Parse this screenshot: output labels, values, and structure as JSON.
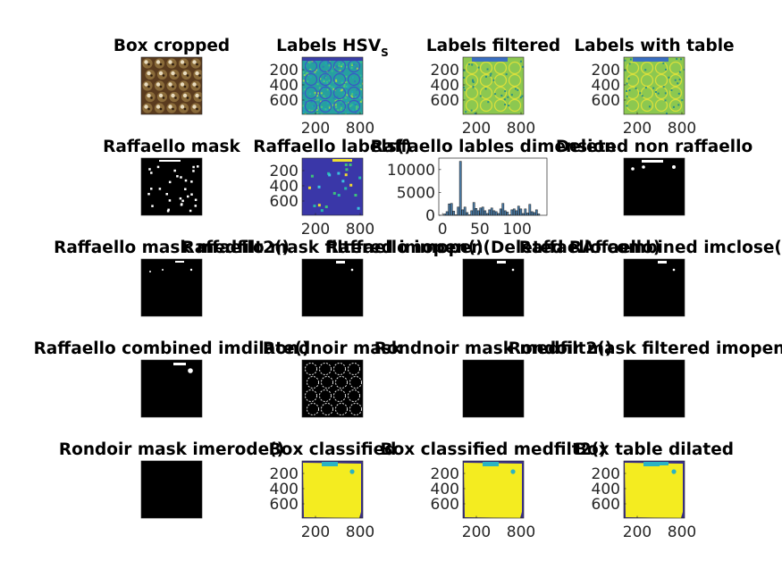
{
  "panels": [
    {
      "id": "box-cropped",
      "title": "Box cropped",
      "kind": "photo",
      "axes": false
    },
    {
      "id": "labels-hsv",
      "title": "Labels HSV",
      "title_subscript": "S",
      "kind": "labels-noise",
      "axes": true,
      "yticks": [
        "200",
        "400",
        "600"
      ],
      "xticks": [
        "200",
        "800"
      ]
    },
    {
      "id": "labels-filtered",
      "title": "Labels filtered",
      "kind": "labels-green",
      "axes": true,
      "yticks": [
        "200",
        "400",
        "600"
      ],
      "xticks": [
        "200",
        "800"
      ]
    },
    {
      "id": "labels-with-table",
      "title": "Labels with table",
      "kind": "labels-green",
      "axes": true,
      "yticks": [
        "200",
        "400",
        "600"
      ],
      "xticks": [
        "200",
        "800"
      ]
    },
    {
      "id": "raffaello-mask",
      "title": "Raffaello mask",
      "kind": "mask-dots",
      "axes": false
    },
    {
      "id": "raffaello-labels",
      "title": "Raffaello labels()",
      "kind": "labels-blue",
      "axes": true,
      "yticks": [
        "200",
        "400",
        "600"
      ],
      "xticks": [
        "200",
        "800"
      ]
    },
    {
      "id": "raffaello-lables-dimension",
      "title": "Raffaello lables dimension",
      "kind": "histogram",
      "axes": true
    },
    {
      "id": "deleted-non-raffaello",
      "title": "Deleted non raffaello",
      "kind": "mask-few",
      "axes": false
    },
    {
      "id": "raffaello-mask-medfilt2",
      "title": "Raffaello mask medfilt2()",
      "kind": "mask-sparse",
      "axes": false
    },
    {
      "id": "raffaello-mask-filtered-imopen",
      "title": "Raffaello mask filtered imopen()",
      "kind": "mask-top",
      "axes": false
    },
    {
      "id": "raffaello-imopen-deleted",
      "title": "Raffaello imopen(Deleted RAffaello)",
      "kind": "mask-top",
      "axes": false
    },
    {
      "id": "raffaello-combined-imclose",
      "title": "Raffaello combined imclose()",
      "kind": "mask-top",
      "axes": false
    },
    {
      "id": "raffaello-combined-imdilate",
      "title": "Raffaello combined imdilate()",
      "kind": "mask-dilate",
      "axes": false
    },
    {
      "id": "rondnoir-mask",
      "title": "Rondnoir mask",
      "kind": "mask-circles",
      "axes": false
    },
    {
      "id": "rondnoir-mask-medfilt2",
      "title": "Rondnoir mask medfilt2()",
      "kind": "mask-black",
      "axes": false
    },
    {
      "id": "rondoir-mask-filtered-imopen",
      "title": "Rondoir mask filtered imopen()",
      "kind": "mask-black",
      "axes": false
    },
    {
      "id": "rondoir-mask-imerode",
      "title": "Rondoir mask imerode()",
      "kind": "mask-black",
      "axes": false
    },
    {
      "id": "box-classified",
      "title": "Box classified",
      "kind": "classified",
      "axes": true,
      "yticks": [
        "200",
        "400",
        "600"
      ],
      "xticks": [
        "200",
        "800"
      ]
    },
    {
      "id": "box-classified-medfilt2",
      "title": "Box classified medfilt2()",
      "kind": "classified",
      "axes": true,
      "yticks": [
        "200",
        "400",
        "600"
      ],
      "xticks": [
        "200",
        "800"
      ]
    },
    {
      "id": "box-table-dilated",
      "title": "Box table dilated",
      "kind": "classified-dilated",
      "axes": true,
      "yticks": [
        "200",
        "400",
        "600"
      ],
      "xticks": [
        "200",
        "800"
      ]
    }
  ],
  "chart_data": {
    "type": "bar",
    "title": "Raffaello lables dimension",
    "x": [
      3,
      6,
      9,
      12,
      15,
      18,
      21,
      24,
      27,
      30,
      33,
      36,
      39,
      42,
      45,
      48,
      51,
      54,
      57,
      60,
      63,
      66,
      69,
      72,
      75,
      78,
      81,
      84,
      87,
      90,
      93,
      96,
      99,
      102,
      105,
      108,
      111,
      114,
      117,
      120,
      123,
      126,
      129
    ],
    "values": [
      300,
      800,
      2500,
      2600,
      900,
      100,
      1800,
      11800,
      1200,
      1800,
      600,
      100,
      1000,
      2800,
      1500,
      1000,
      1600,
      1800,
      1000,
      400,
      1200,
      1600,
      1000,
      800,
      400,
      1400,
      2600,
      1000,
      700,
      100,
      1200,
      1400,
      1000,
      2000,
      1400,
      400,
      1400,
      500,
      2400,
      800,
      600,
      1200,
      300
    ],
    "xlim": [
      -5,
      140
    ],
    "ylim": [
      0,
      12500
    ],
    "xticks": [
      "0",
      "50",
      "100"
    ],
    "yticks": [
      "0",
      "5000",
      "10000"
    ],
    "bar_color": "#4a7ca8"
  }
}
